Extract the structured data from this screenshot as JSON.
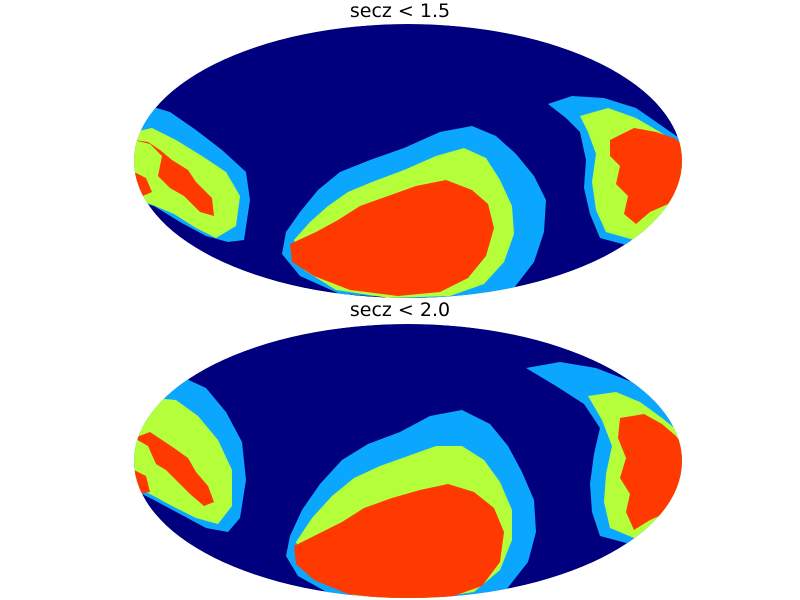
{
  "panels": [
    {
      "title": "secz < 1.5",
      "projection": "mollweide",
      "levels": [
        {
          "level": 0,
          "color": "#00007f"
        },
        {
          "level": 1,
          "color": "#0ba7ff"
        },
        {
          "level": 2,
          "color": "#b4ff3a"
        },
        {
          "level": 3,
          "color": "#ff3a00"
        }
      ]
    },
    {
      "title": "secz < 2.0",
      "projection": "mollweide",
      "levels": [
        {
          "level": 0,
          "color": "#00007f"
        },
        {
          "level": 1,
          "color": "#0ba7ff"
        },
        {
          "level": 2,
          "color": "#b4ff3a"
        },
        {
          "level": 3,
          "color": "#ff3a00"
        }
      ]
    }
  ],
  "colors": {
    "background_level": "#00007f",
    "level1": "#0ba7ff",
    "level2": "#b4ff3a",
    "level3": "#ff3a00"
  }
}
